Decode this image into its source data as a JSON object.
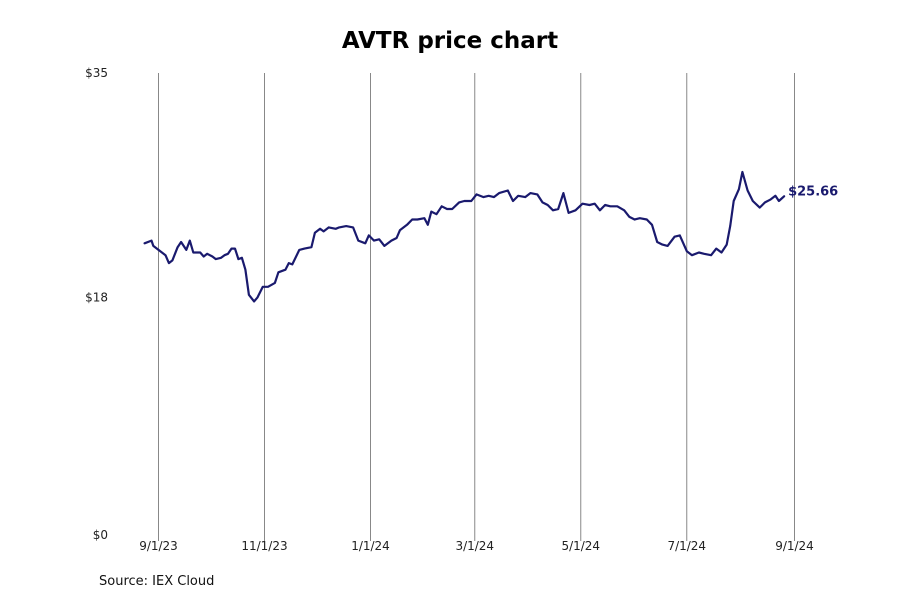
{
  "title": "AVTR price chart",
  "source": "Source: IEX Cloud",
  "colors": {
    "line": "#1a1a6e",
    "grid": "#888888"
  },
  "chart_data": {
    "type": "line",
    "title": "AVTR price chart",
    "xlabel": "",
    "ylabel": "",
    "y_ticks": [
      {
        "value": 35,
        "label": "$35"
      },
      {
        "value": 18,
        "label": "$18"
      },
      {
        "value": 0,
        "label": "$0"
      }
    ],
    "ylim": [
      0,
      35
    ],
    "x_ticks": [
      "9/1/23",
      "11/1/23",
      "1/1/24",
      "3/1/24",
      "5/1/24",
      "7/1/24",
      "9/1/24"
    ],
    "xlim": [
      "2023-09-01",
      "2024-09-01"
    ],
    "grid": "vertical at x ticks",
    "last_value_label": "$25.66",
    "series": [
      {
        "points": [
          [
            "2023-08-24",
            22.1
          ],
          [
            "2023-08-28",
            22.3
          ],
          [
            "2023-08-29",
            21.9
          ],
          [
            "2023-09-01",
            21.6
          ],
          [
            "2023-09-05",
            21.2
          ],
          [
            "2023-09-07",
            20.6
          ],
          [
            "2023-09-09",
            20.8
          ],
          [
            "2023-09-12",
            21.8
          ],
          [
            "2023-09-14",
            22.2
          ],
          [
            "2023-09-17",
            21.6
          ],
          [
            "2023-09-19",
            22.3
          ],
          [
            "2023-09-21",
            21.4
          ],
          [
            "2023-09-25",
            21.4
          ],
          [
            "2023-09-27",
            21.1
          ],
          [
            "2023-09-29",
            21.3
          ],
          [
            "2023-10-02",
            21.1
          ],
          [
            "2023-10-04",
            20.9
          ],
          [
            "2023-10-07",
            21.0
          ],
          [
            "2023-10-09",
            21.2
          ],
          [
            "2023-10-11",
            21.3
          ],
          [
            "2023-10-13",
            21.7
          ],
          [
            "2023-10-15",
            21.7
          ],
          [
            "2023-10-17",
            20.9
          ],
          [
            "2023-10-19",
            21.0
          ],
          [
            "2023-10-21",
            20.1
          ],
          [
            "2023-10-23",
            18.2
          ],
          [
            "2023-10-26",
            17.7
          ],
          [
            "2023-10-28",
            18.0
          ],
          [
            "2023-10-31",
            18.8
          ],
          [
            "2023-11-03",
            18.8
          ],
          [
            "2023-11-07",
            19.1
          ],
          [
            "2023-11-09",
            19.9
          ],
          [
            "2023-11-13",
            20.1
          ],
          [
            "2023-11-15",
            20.6
          ],
          [
            "2023-11-17",
            20.5
          ],
          [
            "2023-11-21",
            21.6
          ],
          [
            "2023-11-24",
            21.7
          ],
          [
            "2023-11-28",
            21.8
          ],
          [
            "2023-11-30",
            22.9
          ],
          [
            "2023-12-03",
            23.2
          ],
          [
            "2023-12-05",
            23.0
          ],
          [
            "2023-12-08",
            23.3
          ],
          [
            "2023-12-12",
            23.2
          ],
          [
            "2023-12-14",
            23.3
          ],
          [
            "2023-12-18",
            23.4
          ],
          [
            "2023-12-22",
            23.3
          ],
          [
            "2023-12-25",
            22.3
          ],
          [
            "2023-12-29",
            22.1
          ],
          [
            "2023-12-31",
            22.7
          ],
          [
            "2024-01-03",
            22.3
          ],
          [
            "2024-01-06",
            22.4
          ],
          [
            "2024-01-09",
            21.9
          ],
          [
            "2024-01-13",
            22.3
          ],
          [
            "2024-01-16",
            22.5
          ],
          [
            "2024-01-18",
            23.1
          ],
          [
            "2024-01-22",
            23.5
          ],
          [
            "2024-01-25",
            23.9
          ],
          [
            "2024-01-28",
            23.9
          ],
          [
            "2024-02-01",
            24.0
          ],
          [
            "2024-02-03",
            23.5
          ],
          [
            "2024-02-05",
            24.5
          ],
          [
            "2024-02-08",
            24.3
          ],
          [
            "2024-02-11",
            24.9
          ],
          [
            "2024-02-14",
            24.7
          ],
          [
            "2024-02-17",
            24.7
          ],
          [
            "2024-02-21",
            25.2
          ],
          [
            "2024-02-24",
            25.3
          ],
          [
            "2024-02-28",
            25.3
          ],
          [
            "2024-03-02",
            25.8
          ],
          [
            "2024-03-06",
            25.6
          ],
          [
            "2024-03-09",
            25.7
          ],
          [
            "2024-03-12",
            25.6
          ],
          [
            "2024-03-15",
            25.9
          ],
          [
            "2024-03-20",
            26.1
          ],
          [
            "2024-03-23",
            25.3
          ],
          [
            "2024-03-26",
            25.7
          ],
          [
            "2024-03-30",
            25.6
          ],
          [
            "2024-04-02",
            25.9
          ],
          [
            "2024-04-06",
            25.8
          ],
          [
            "2024-04-09",
            25.2
          ],
          [
            "2024-04-12",
            25.0
          ],
          [
            "2024-04-15",
            24.6
          ],
          [
            "2024-04-18",
            24.7
          ],
          [
            "2024-04-21",
            25.9
          ],
          [
            "2024-04-24",
            24.4
          ],
          [
            "2024-04-28",
            24.6
          ],
          [
            "2024-05-02",
            25.1
          ],
          [
            "2024-05-06",
            25.0
          ],
          [
            "2024-05-09",
            25.1
          ],
          [
            "2024-05-12",
            24.6
          ],
          [
            "2024-05-15",
            25.0
          ],
          [
            "2024-05-18",
            24.9
          ],
          [
            "2024-05-22",
            24.9
          ],
          [
            "2024-05-26",
            24.6
          ],
          [
            "2024-05-29",
            24.1
          ],
          [
            "2024-06-01",
            23.9
          ],
          [
            "2024-06-04",
            24.0
          ],
          [
            "2024-06-08",
            23.9
          ],
          [
            "2024-06-11",
            23.5
          ],
          [
            "2024-06-14",
            22.2
          ],
          [
            "2024-06-17",
            22.0
          ],
          [
            "2024-06-20",
            21.9
          ],
          [
            "2024-06-24",
            22.6
          ],
          [
            "2024-06-27",
            22.7
          ],
          [
            "2024-07-01",
            21.5
          ],
          [
            "2024-07-04",
            21.2
          ],
          [
            "2024-07-08",
            21.4
          ],
          [
            "2024-07-11",
            21.3
          ],
          [
            "2024-07-15",
            21.2
          ],
          [
            "2024-07-18",
            21.7
          ],
          [
            "2024-07-21",
            21.4
          ],
          [
            "2024-07-24",
            22.0
          ],
          [
            "2024-07-26",
            23.4
          ],
          [
            "2024-07-28",
            25.3
          ],
          [
            "2024-07-31",
            26.2
          ],
          [
            "2024-08-02",
            27.5
          ],
          [
            "2024-08-05",
            26.1
          ],
          [
            "2024-08-08",
            25.3
          ],
          [
            "2024-08-12",
            24.8
          ],
          [
            "2024-08-15",
            25.2
          ],
          [
            "2024-08-18",
            25.4
          ],
          [
            "2024-08-21",
            25.7
          ],
          [
            "2024-08-23",
            25.3
          ],
          [
            "2024-08-26",
            25.66
          ]
        ]
      }
    ]
  }
}
